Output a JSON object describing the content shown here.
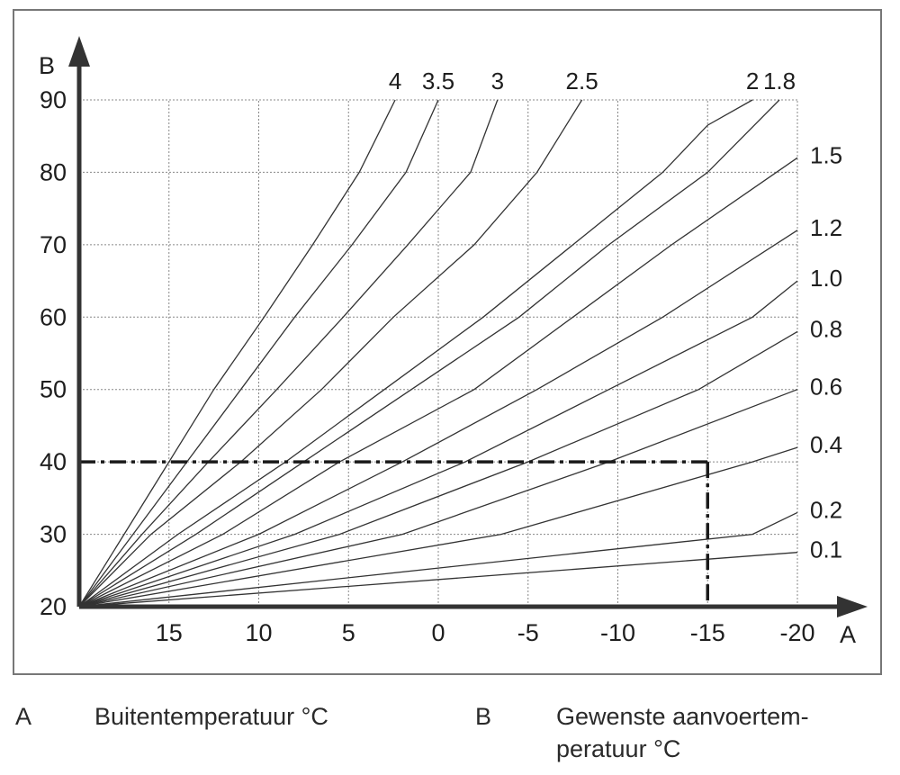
{
  "chart_data": {
    "type": "line",
    "x_axis": {
      "label": "A",
      "range": [
        20,
        -20
      ],
      "ticks": [
        15,
        10,
        5,
        0,
        -5,
        -10,
        -15,
        -20
      ],
      "tick_labels": [
        "15",
        "10",
        "5",
        "0",
        "-5",
        "-10",
        "-15",
        "-20"
      ],
      "grid": true
    },
    "y_axis": {
      "label": "B",
      "range": [
        20,
        90
      ],
      "ticks": [
        20,
        30,
        40,
        50,
        60,
        70,
        80,
        90
      ],
      "tick_labels": [
        "20",
        "30",
        "40",
        "50",
        "60",
        "70",
        "80",
        "90"
      ],
      "grid": true
    },
    "series": [
      {
        "name": "4",
        "points": [
          [
            20,
            20
          ],
          [
            17.5,
            30
          ],
          [
            15,
            40
          ],
          [
            12.5,
            50
          ],
          [
            9.7,
            60
          ],
          [
            7,
            70
          ],
          [
            4.4,
            80
          ],
          [
            2.4,
            90
          ]
        ]
      },
      {
        "name": "3.5",
        "points": [
          [
            20,
            20
          ],
          [
            17,
            30
          ],
          [
            14,
            40
          ],
          [
            11,
            50
          ],
          [
            8,
            60
          ],
          [
            4.8,
            70
          ],
          [
            1.8,
            80
          ],
          [
            0,
            90
          ]
        ]
      },
      {
        "name": "3",
        "points": [
          [
            20,
            20
          ],
          [
            16.5,
            30
          ],
          [
            12.8,
            40
          ],
          [
            9,
            50
          ],
          [
            5.3,
            60
          ],
          [
            1.7,
            70
          ],
          [
            -1.8,
            80
          ],
          [
            -3.3,
            90
          ]
        ]
      },
      {
        "name": "2.5",
        "points": [
          [
            20,
            20
          ],
          [
            16,
            30
          ],
          [
            11,
            40
          ],
          [
            6.5,
            50
          ],
          [
            2.5,
            60
          ],
          [
            -2,
            70
          ],
          [
            -5.5,
            80
          ],
          [
            -8,
            90
          ]
        ]
      },
      {
        "name": "2",
        "points": [
          [
            20,
            20
          ],
          [
            14.5,
            30
          ],
          [
            8.5,
            40
          ],
          [
            3,
            50
          ],
          [
            -2.5,
            60
          ],
          [
            -7.5,
            70
          ],
          [
            -12.5,
            80
          ],
          [
            -15,
            86.5
          ],
          [
            -17.5,
            90
          ]
        ]
      },
      {
        "name": "1.8",
        "points": [
          [
            20,
            20
          ],
          [
            13.5,
            30
          ],
          [
            7.5,
            40
          ],
          [
            1.5,
            50
          ],
          [
            -4.5,
            60
          ],
          [
            -9.5,
            70
          ],
          [
            -15,
            80
          ],
          [
            -19,
            90
          ]
        ]
      },
      {
        "name": "1.5",
        "points": [
          [
            20,
            20
          ],
          [
            12,
            30
          ],
          [
            5.5,
            40
          ],
          [
            -2,
            50
          ],
          [
            -7.5,
            60
          ],
          [
            -13,
            70
          ],
          [
            -20,
            82
          ]
        ]
      },
      {
        "name": "1.2",
        "points": [
          [
            20,
            20
          ],
          [
            10,
            30
          ],
          [
            2,
            40
          ],
          [
            -5.5,
            50
          ],
          [
            -12.5,
            60
          ],
          [
            -20,
            72
          ]
        ]
      },
      {
        "name": "1.0",
        "points": [
          [
            20,
            20
          ],
          [
            8,
            30
          ],
          [
            -1.5,
            40
          ],
          [
            -9.5,
            50
          ],
          [
            -17.5,
            60
          ],
          [
            -20,
            65
          ]
        ]
      },
      {
        "name": "0.8",
        "points": [
          [
            20,
            20
          ],
          [
            5.5,
            30
          ],
          [
            -5,
            40
          ],
          [
            -14.5,
            50
          ],
          [
            -20,
            58
          ]
        ]
      },
      {
        "name": "0.6",
        "points": [
          [
            20,
            20
          ],
          [
            2,
            30
          ],
          [
            -9.5,
            40
          ],
          [
            -20,
            50
          ]
        ]
      },
      {
        "name": "0.4",
        "points": [
          [
            20,
            20
          ],
          [
            -3.5,
            30
          ],
          [
            -17.5,
            40
          ],
          [
            -20,
            42
          ]
        ]
      },
      {
        "name": "0.2",
        "points": [
          [
            20,
            20
          ],
          [
            -17.5,
            30
          ],
          [
            -20,
            33
          ]
        ]
      },
      {
        "name": "0.1",
        "points": [
          [
            20,
            20
          ],
          [
            -20,
            27.5
          ]
        ]
      }
    ],
    "reference_line": {
      "x": -15,
      "y": 40,
      "style": "dash-dot"
    }
  },
  "legend": {
    "a_key": "A",
    "a_text": "Buitentemperatuur °C",
    "b_key": "B",
    "b_text": "Gewenste aanvoertem-peratuur °C"
  },
  "colors": {
    "curve": "#333333",
    "axis": "#333333",
    "grid": "#888888",
    "reference": "#1a1a1a"
  }
}
